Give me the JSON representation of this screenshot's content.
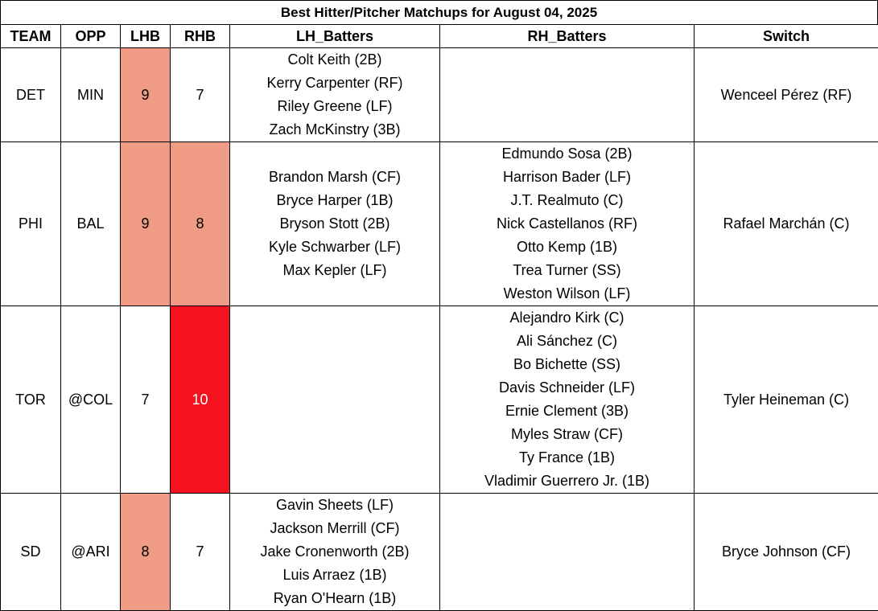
{
  "title": "Best Hitter/Pitcher Matchups for August 04, 2025",
  "headers": {
    "team": "TEAM",
    "opp": "OPP",
    "lhb": "LHB",
    "rhb": "RHB",
    "lh_batters": "LH_Batters",
    "rh_batters": "RH_Batters",
    "switch": "Switch"
  },
  "colors": {
    "heat_light": "#f09c84",
    "heat_hot": "#f5121f"
  },
  "rows": [
    {
      "team": "DET",
      "opp": "MIN",
      "lhb": "9",
      "rhb": "7",
      "lhb_heat": "light",
      "rhb_heat": "none",
      "lh_batters": [
        "Colt Keith (2B)",
        "Kerry Carpenter (RF)",
        "Riley Greene (LF)",
        "Zach McKinstry (3B)"
      ],
      "rh_batters": [],
      "switch": "Wenceel Pérez (RF)"
    },
    {
      "team": "PHI",
      "opp": "BAL",
      "lhb": "9",
      "rhb": "8",
      "lhb_heat": "light",
      "rhb_heat": "light",
      "lh_batters": [
        "Brandon Marsh (CF)",
        "Bryce Harper (1B)",
        "Bryson Stott (2B)",
        "Kyle Schwarber (LF)",
        "Max Kepler (LF)"
      ],
      "rh_batters": [
        "Edmundo Sosa (2B)",
        "Harrison Bader (LF)",
        "J.T. Realmuto (C)",
        "Nick Castellanos (RF)",
        "Otto Kemp (1B)",
        "Trea Turner (SS)",
        "Weston Wilson (LF)"
      ],
      "switch": "Rafael Marchán (C)"
    },
    {
      "team": "TOR",
      "opp": "@COL",
      "lhb": "7",
      "rhb": "10",
      "lhb_heat": "none",
      "rhb_heat": "hot",
      "lh_batters": [],
      "rh_batters": [
        "Alejandro Kirk (C)",
        "Ali Sánchez (C)",
        "Bo Bichette (SS)",
        "Davis Schneider (LF)",
        "Ernie Clement (3B)",
        "Myles Straw (CF)",
        "Ty France (1B)",
        "Vladimir Guerrero Jr. (1B)"
      ],
      "switch": "Tyler Heineman (C)"
    },
    {
      "team": "SD",
      "opp": "@ARI",
      "lhb": "8",
      "rhb": "7",
      "lhb_heat": "light",
      "rhb_heat": "none",
      "lh_batters": [
        "Gavin Sheets (LF)",
        "Jackson Merrill (CF)",
        "Jake Cronenworth (2B)",
        "Luis Arraez (1B)",
        "Ryan O'Hearn (1B)"
      ],
      "rh_batters": [],
      "switch": "Bryce Johnson (CF)"
    }
  ]
}
